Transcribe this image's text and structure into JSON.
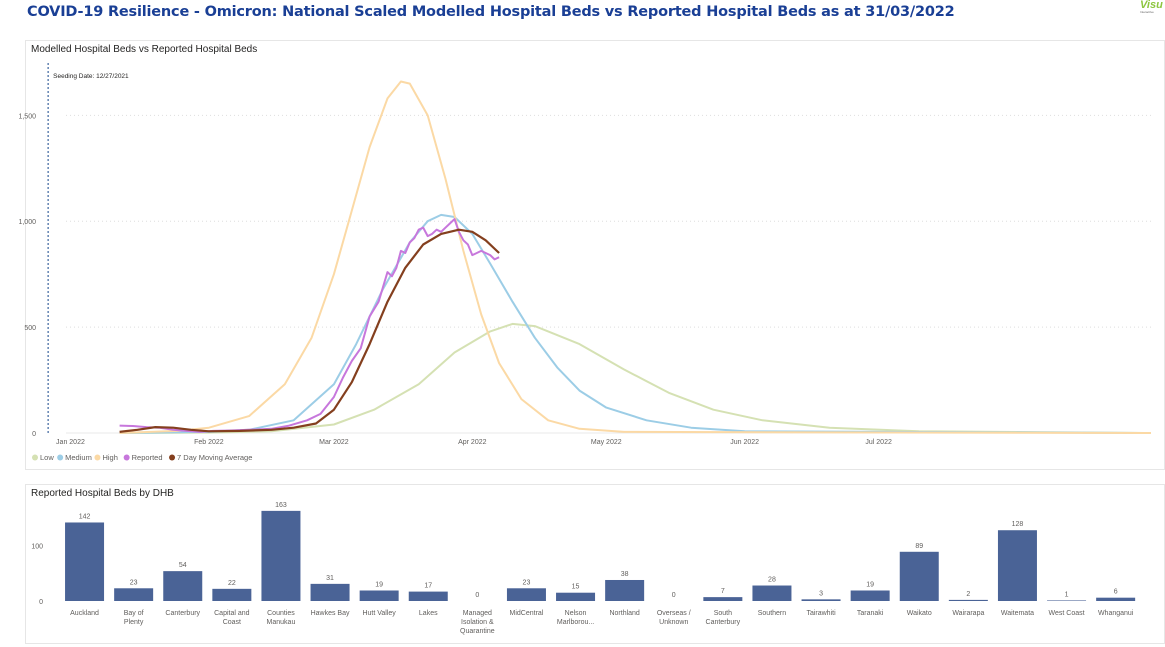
{
  "header": {
    "title": "COVID-19 Resilience - Omicron: National Scaled Modelled Hospital Beds vs Reported Hospital Beds as at 31/03/2022"
  },
  "logo": {
    "word": "Visu",
    "sub": "Interactive"
  },
  "colors": {
    "title": "#1a3f95",
    "bar": "#4a6396",
    "low": "#d5e1b3",
    "medium": "#9ccde6",
    "high": "#fbd9a5",
    "reported": "#c777dc",
    "avg": "#843f1e",
    "seeding": "#4a6fa5"
  },
  "line_panel": {
    "title": "Modelled Hospital Beds vs Reported Hospital Beds"
  },
  "bar_panel": {
    "title": "Reported Hospital Beds by DHB"
  },
  "chart_data": [
    {
      "type": "line",
      "title": "Modelled Hospital Beds vs Reported Hospital Beds",
      "x_range": [
        "2021-12-31",
        "2022-08-31"
      ],
      "ylim": [
        0,
        1700
      ],
      "y_ticks": [
        0,
        500,
        1000,
        1500
      ],
      "y_tick_labels": [
        "0",
        "500",
        "1,000",
        "1,500"
      ],
      "x_ticks": [
        {
          "date": "2022-01-01",
          "label": "Jan 2022"
        },
        {
          "date": "2022-02-01",
          "label": "Feb 2022"
        },
        {
          "date": "2022-03-01",
          "label": "Mar 2022"
        },
        {
          "date": "2022-04-01",
          "label": "Apr 2022"
        },
        {
          "date": "2022-05-01",
          "label": "May 2022"
        },
        {
          "date": "2022-06-01",
          "label": "Jun 2022"
        },
        {
          "date": "2022-07-01",
          "label": "Jul 2022"
        }
      ],
      "grid": true,
      "legend": "bottom-left",
      "annotation": {
        "text": "Seeding Date: 12/27/2021",
        "date": "2021-12-27"
      },
      "series": [
        {
          "name": "Low",
          "color": "#d5e1b3",
          "points": [
            [
              "2022-01-12",
              0
            ],
            [
              "2022-02-01",
              2
            ],
            [
              "2022-02-15",
              8
            ],
            [
              "2022-03-01",
              40
            ],
            [
              "2022-03-10",
              110
            ],
            [
              "2022-03-20",
              230
            ],
            [
              "2022-03-28",
              380
            ],
            [
              "2022-04-05",
              480
            ],
            [
              "2022-04-10",
              515
            ],
            [
              "2022-04-15",
              505
            ],
            [
              "2022-04-25",
              420
            ],
            [
              "2022-05-05",
              300
            ],
            [
              "2022-05-15",
              190
            ],
            [
              "2022-05-25",
              110
            ],
            [
              "2022-06-05",
              60
            ],
            [
              "2022-06-20",
              25
            ],
            [
              "2022-07-10",
              8
            ],
            [
              "2022-08-31",
              0
            ]
          ]
        },
        {
          "name": "Medium",
          "color": "#9ccde6",
          "points": [
            [
              "2022-01-12",
              0
            ],
            [
              "2022-02-01",
              5
            ],
            [
              "2022-02-10",
              15
            ],
            [
              "2022-02-20",
              60
            ],
            [
              "2022-03-01",
              230
            ],
            [
              "2022-03-06",
              420
            ],
            [
              "2022-03-12",
              680
            ],
            [
              "2022-03-18",
              900
            ],
            [
              "2022-03-22",
              1000
            ],
            [
              "2022-03-25",
              1030
            ],
            [
              "2022-03-28",
              1020
            ],
            [
              "2022-04-01",
              940
            ],
            [
              "2022-04-05",
              800
            ],
            [
              "2022-04-10",
              620
            ],
            [
              "2022-04-15",
              450
            ],
            [
              "2022-04-20",
              310
            ],
            [
              "2022-04-25",
              200
            ],
            [
              "2022-05-01",
              120
            ],
            [
              "2022-05-10",
              60
            ],
            [
              "2022-05-20",
              25
            ],
            [
              "2022-06-01",
              8
            ],
            [
              "2022-08-31",
              0
            ]
          ]
        },
        {
          "name": "High",
          "color": "#fbd9a5",
          "points": [
            [
              "2022-01-12",
              0
            ],
            [
              "2022-01-25",
              10
            ],
            [
              "2022-02-01",
              25
            ],
            [
              "2022-02-10",
              80
            ],
            [
              "2022-02-18",
              230
            ],
            [
              "2022-02-24",
              450
            ],
            [
              "2022-03-01",
              750
            ],
            [
              "2022-03-05",
              1050
            ],
            [
              "2022-03-09",
              1350
            ],
            [
              "2022-03-13",
              1580
            ],
            [
              "2022-03-16",
              1660
            ],
            [
              "2022-03-18",
              1650
            ],
            [
              "2022-03-22",
              1500
            ],
            [
              "2022-03-26",
              1200
            ],
            [
              "2022-03-30",
              860
            ],
            [
              "2022-04-03",
              560
            ],
            [
              "2022-04-07",
              330
            ],
            [
              "2022-04-12",
              160
            ],
            [
              "2022-04-18",
              60
            ],
            [
              "2022-04-25",
              20
            ],
            [
              "2022-05-05",
              5
            ],
            [
              "2022-08-31",
              0
            ]
          ]
        },
        {
          "name": "Reported",
          "color": "#c777dc",
          "points": [
            [
              "2022-01-12",
              35
            ],
            [
              "2022-01-15",
              33
            ],
            [
              "2022-01-18",
              28
            ],
            [
              "2022-01-21",
              25
            ],
            [
              "2022-01-24",
              15
            ],
            [
              "2022-01-27",
              10
            ],
            [
              "2022-01-30",
              5
            ],
            [
              "2022-02-02",
              10
            ],
            [
              "2022-02-06",
              12
            ],
            [
              "2022-02-10",
              15
            ],
            [
              "2022-02-15",
              20
            ],
            [
              "2022-02-19",
              35
            ],
            [
              "2022-02-23",
              60
            ],
            [
              "2022-02-26",
              90
            ],
            [
              "2022-03-01",
              170
            ],
            [
              "2022-03-03",
              260
            ],
            [
              "2022-03-05",
              340
            ],
            [
              "2022-03-07",
              400
            ],
            [
              "2022-03-09",
              550
            ],
            [
              "2022-03-11",
              620
            ],
            [
              "2022-03-13",
              760
            ],
            [
              "2022-03-14",
              740
            ],
            [
              "2022-03-15",
              780
            ],
            [
              "2022-03-16",
              860
            ],
            [
              "2022-03-17",
              850
            ],
            [
              "2022-03-18",
              900
            ],
            [
              "2022-03-19",
              920
            ],
            [
              "2022-03-20",
              960
            ],
            [
              "2022-03-21",
              970
            ],
            [
              "2022-03-22",
              930
            ],
            [
              "2022-03-23",
              940
            ],
            [
              "2022-03-24",
              960
            ],
            [
              "2022-03-25",
              950
            ],
            [
              "2022-03-27",
              990
            ],
            [
              "2022-03-28",
              1010
            ],
            [
              "2022-03-29",
              950
            ],
            [
              "2022-03-30",
              910
            ],
            [
              "2022-03-31",
              890
            ],
            [
              "2022-04-01",
              840
            ],
            [
              "2022-04-02",
              850
            ],
            [
              "2022-04-03",
              860
            ],
            [
              "2022-04-05",
              840
            ],
            [
              "2022-04-06",
              820
            ],
            [
              "2022-04-07",
              830
            ]
          ]
        },
        {
          "name": "7 Day Moving Average",
          "color": "#843f1e",
          "points": [
            [
              "2022-01-12",
              5
            ],
            [
              "2022-01-16",
              15
            ],
            [
              "2022-01-20",
              28
            ],
            [
              "2022-01-24",
              25
            ],
            [
              "2022-01-28",
              15
            ],
            [
              "2022-02-01",
              8
            ],
            [
              "2022-02-08",
              10
            ],
            [
              "2022-02-15",
              15
            ],
            [
              "2022-02-20",
              25
            ],
            [
              "2022-02-25",
              45
            ],
            [
              "2022-03-01",
              110
            ],
            [
              "2022-03-05",
              240
            ],
            [
              "2022-03-09",
              420
            ],
            [
              "2022-03-13",
              620
            ],
            [
              "2022-03-17",
              780
            ],
            [
              "2022-03-21",
              890
            ],
            [
              "2022-03-25",
              940
            ],
            [
              "2022-03-29",
              960
            ],
            [
              "2022-04-01",
              950
            ],
            [
              "2022-04-04",
              910
            ],
            [
              "2022-04-07",
              850
            ]
          ]
        }
      ]
    },
    {
      "type": "bar",
      "title": "Reported Hospital Beds by DHB",
      "ylim": [
        0,
        170
      ],
      "y_ticks": [
        0,
        100
      ],
      "categories": [
        "Auckland",
        "Bay of Plenty",
        "Canterbury",
        "Capital and Coast",
        "Counties Manukau",
        "Hawkes Bay",
        "Hutt Valley",
        "Lakes",
        "Managed Isolation & Quarantine",
        "MidCentral",
        "Nelson Marlborou...",
        "Northland",
        "Overseas / Unknown",
        "South Canterbury",
        "Southern",
        "Tairawhiti",
        "Taranaki",
        "Waikato",
        "Wairarapa",
        "Waitemata",
        "West Coast",
        "Whanganui"
      ],
      "category_lines": [
        [
          "Auckland"
        ],
        [
          "Bay of",
          "Plenty"
        ],
        [
          "Canterbury"
        ],
        [
          "Capital and",
          "Coast"
        ],
        [
          "Counties",
          "Manukau"
        ],
        [
          "Hawkes Bay"
        ],
        [
          "Hutt Valley"
        ],
        [
          "Lakes"
        ],
        [
          "Managed",
          "Isolation &",
          "Quarantine"
        ],
        [
          "MidCentral"
        ],
        [
          "Nelson",
          "Marlborou..."
        ],
        [
          "Northland"
        ],
        [
          "Overseas /",
          "Unknown"
        ],
        [
          "South",
          "Canterbury"
        ],
        [
          "Southern"
        ],
        [
          "Tairawhiti"
        ],
        [
          "Taranaki"
        ],
        [
          "Waikato"
        ],
        [
          "Wairarapa"
        ],
        [
          "Waitemata"
        ],
        [
          "West Coast"
        ],
        [
          "Whanganui"
        ]
      ],
      "values": [
        142,
        23,
        54,
        22,
        163,
        31,
        19,
        17,
        0,
        23,
        15,
        38,
        0,
        7,
        28,
        3,
        19,
        89,
        2,
        128,
        1,
        6
      ]
    }
  ]
}
